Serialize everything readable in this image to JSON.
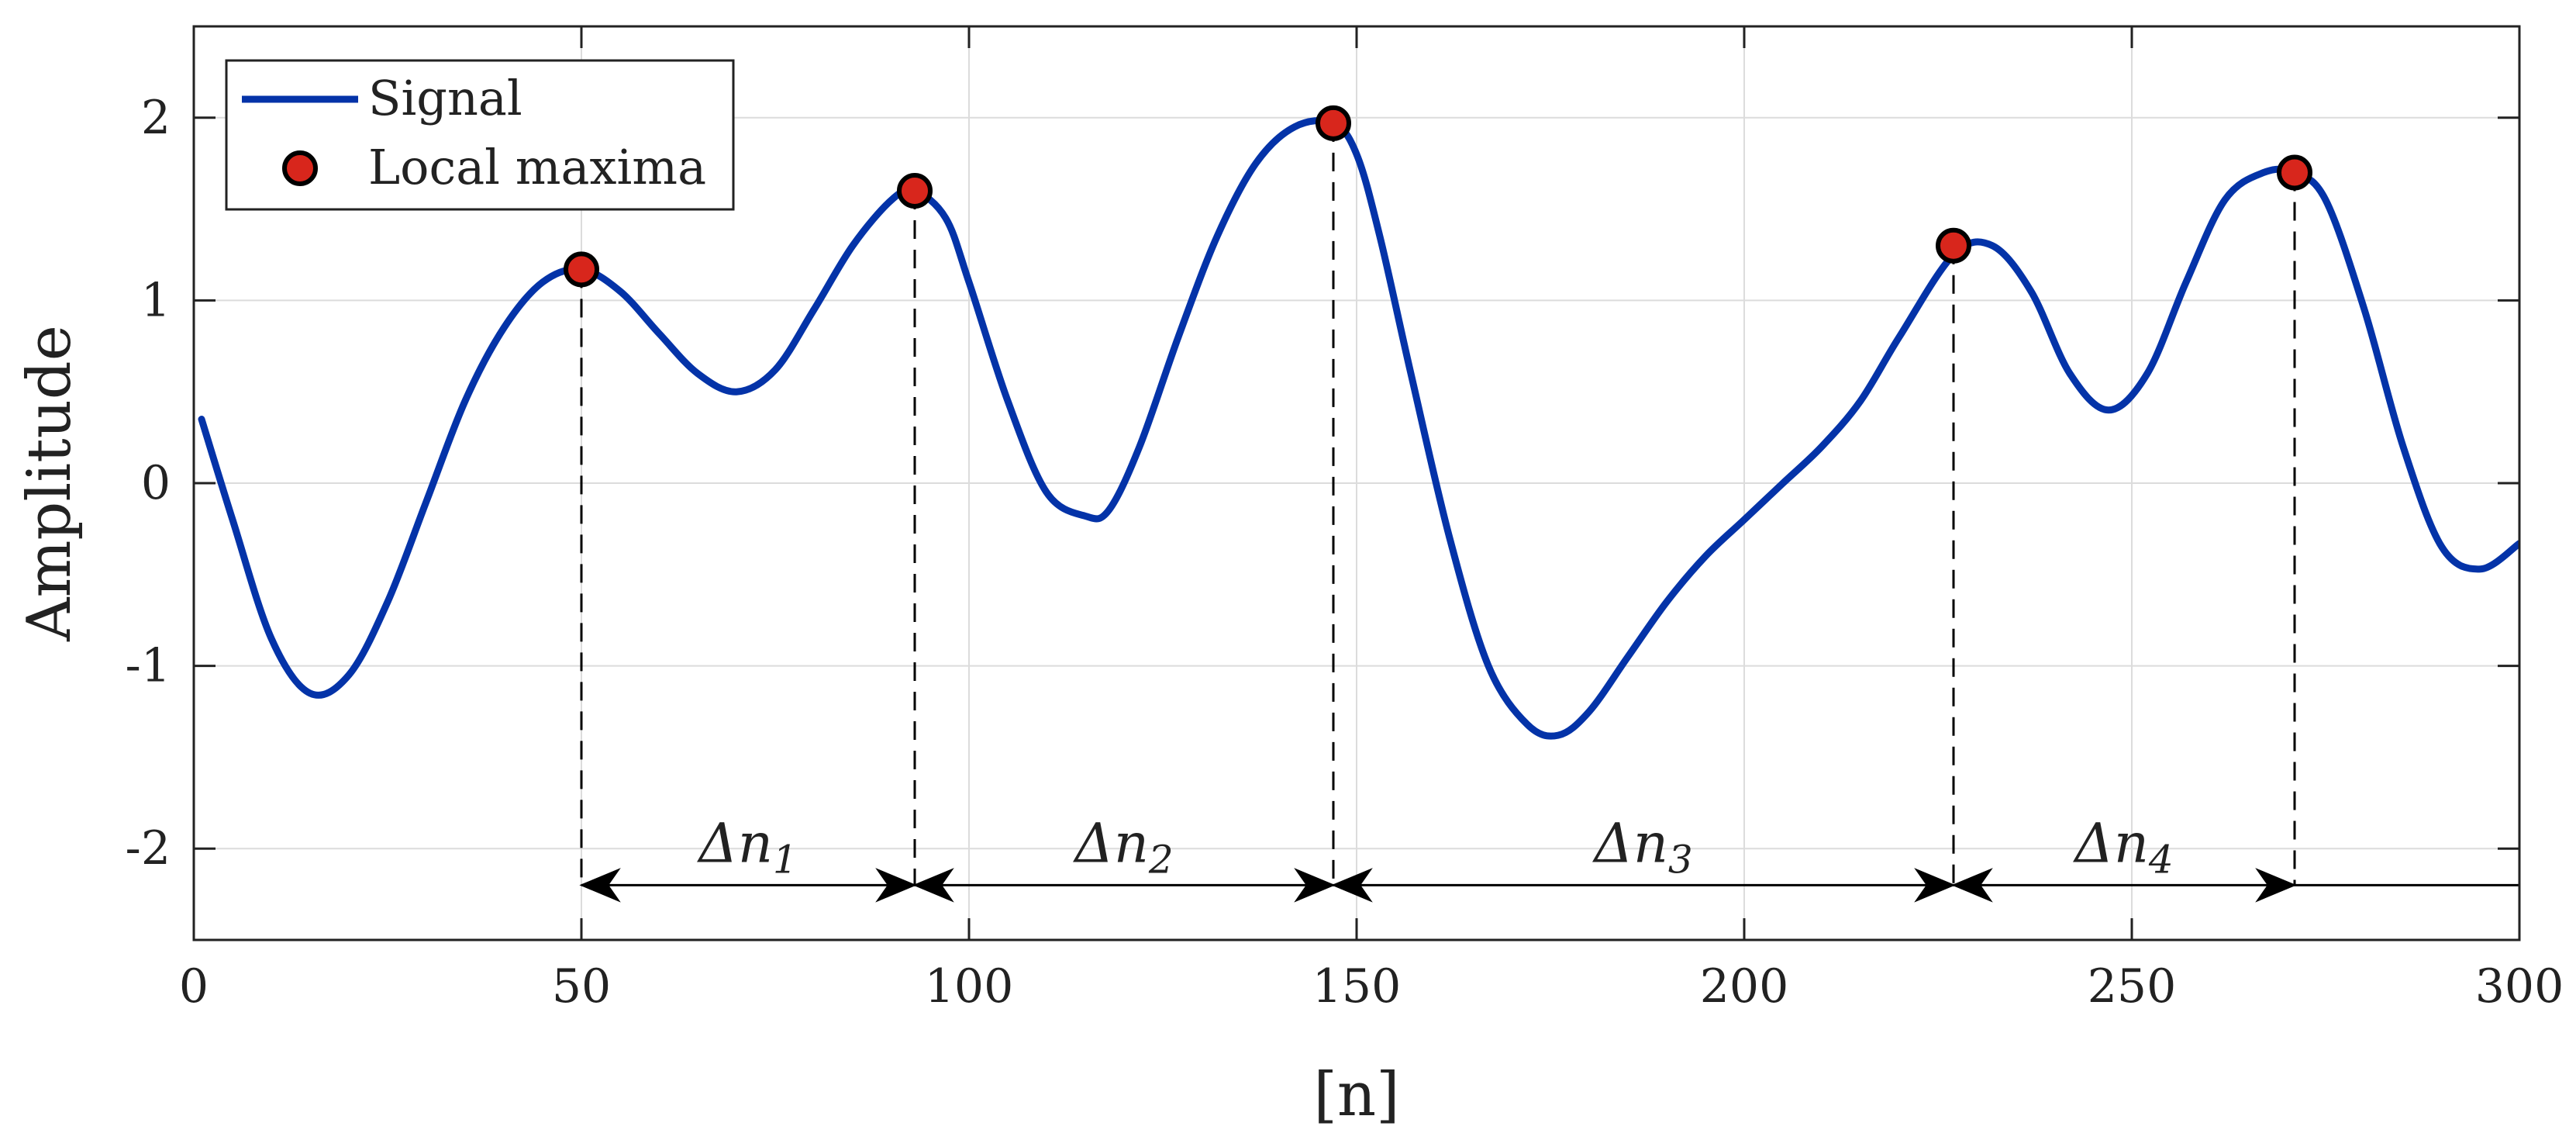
{
  "chart_data": {
    "type": "line",
    "xlabel": "[n]",
    "ylabel": "Amplitude",
    "xlim": [
      0,
      300
    ],
    "ylim": [
      -2.5,
      2.5
    ],
    "xticks": [
      0,
      50,
      100,
      150,
      200,
      250,
      300
    ],
    "xtick_labels": [
      "0",
      "50",
      "100",
      "150",
      "200",
      "250",
      "300"
    ],
    "yticks": [
      -2,
      -1,
      0,
      1,
      2
    ],
    "ytick_labels": [
      "-2",
      "-1",
      "0",
      "1",
      "2"
    ],
    "grid": true,
    "legend_position": "top-left",
    "series": [
      {
        "name": "Signal",
        "kind": "line",
        "color": "#0433a8",
        "x": [
          1,
          5,
          10,
          15,
          20,
          25,
          30,
          35,
          40,
          45,
          50,
          55,
          60,
          65,
          70,
          75,
          80,
          85,
          90,
          93,
          97,
          100,
          105,
          110,
          115,
          118,
          122,
          127,
          132,
          137,
          142,
          147,
          150,
          153,
          157,
          162,
          167,
          172,
          176,
          180,
          185,
          190,
          195,
          200,
          205,
          210,
          215,
          220,
          227,
          232,
          237,
          242,
          247,
          252,
          257,
          262,
          267,
          271,
          275,
          280,
          285,
          290,
          295,
          300
        ],
        "y": [
          0.35,
          -0.2,
          -0.85,
          -1.15,
          -1.05,
          -0.65,
          -0.1,
          0.45,
          0.85,
          1.1,
          1.17,
          1.05,
          0.82,
          0.6,
          0.5,
          0.62,
          0.95,
          1.3,
          1.55,
          1.6,
          1.45,
          1.1,
          0.45,
          -0.05,
          -0.18,
          -0.15,
          0.2,
          0.8,
          1.35,
          1.75,
          1.95,
          1.97,
          1.8,
          1.35,
          0.6,
          -0.3,
          -1.0,
          -1.32,
          -1.38,
          -1.25,
          -0.95,
          -0.65,
          -0.4,
          -0.2,
          0.0,
          0.2,
          0.45,
          0.8,
          1.25,
          1.3,
          1.05,
          0.6,
          0.4,
          0.6,
          1.1,
          1.55,
          1.7,
          1.7,
          1.55,
          0.95,
          0.2,
          -0.35,
          -0.47,
          -0.33
        ]
      },
      {
        "name": "Local maxima",
        "kind": "scatter",
        "color": "#d8261c",
        "x": [
          50,
          93,
          147,
          227,
          271
        ],
        "y": [
          1.17,
          1.6,
          1.97,
          1.3,
          1.7
        ]
      }
    ],
    "interval_annotations": [
      {
        "label": "Δn",
        "subscript": "1",
        "x_start": 50,
        "x_end": 93,
        "y": -2.2
      },
      {
        "label": "Δn",
        "subscript": "2",
        "x_start": 93,
        "x_end": 147,
        "y": -2.2
      },
      {
        "label": "Δn",
        "subscript": "3",
        "x_start": 147,
        "x_end": 227,
        "y": -2.2
      },
      {
        "label": "Δn",
        "subscript": "4",
        "x_start": 227,
        "x_end": 271,
        "y": -2.2
      }
    ],
    "reference_line": {
      "y": -2.2,
      "x_start": 271,
      "x_end": 300
    },
    "colors": {
      "axis": "#222222",
      "grid": "#dcdcdc",
      "annotation": "#000000"
    }
  }
}
